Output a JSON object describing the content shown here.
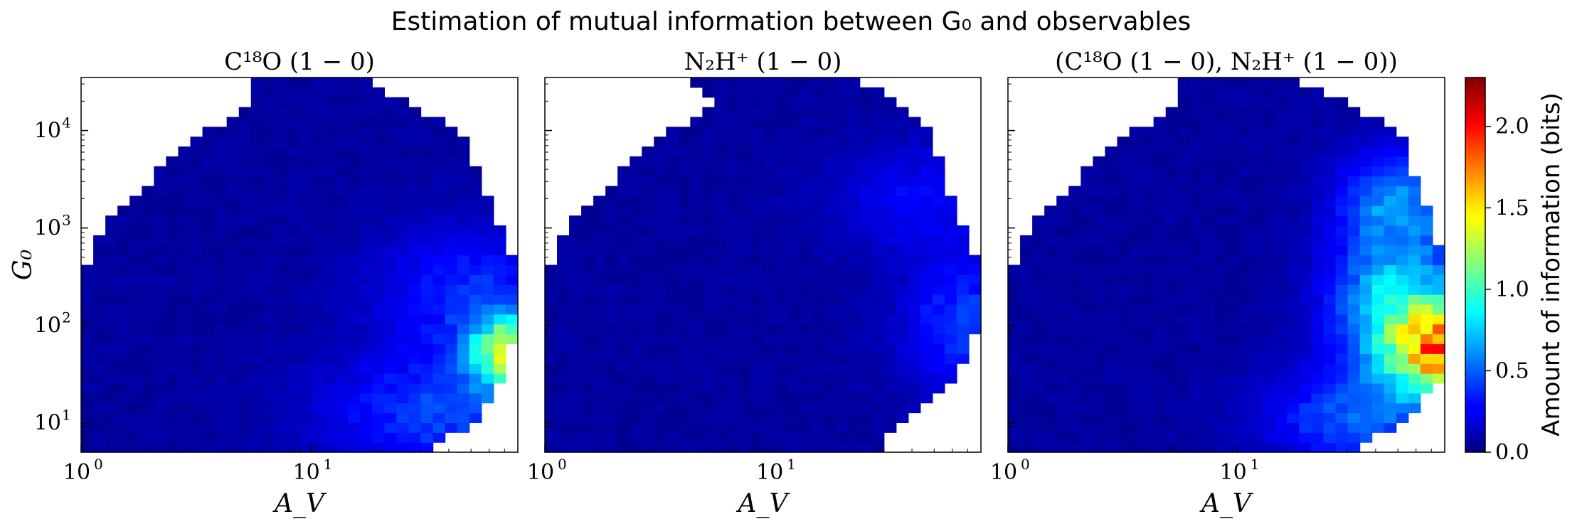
{
  "figure_title": "Estimation of mutual information between G₀ and observables",
  "colors": {
    "colormap": "jet",
    "frame": "#000000",
    "background": "#ffffff"
  },
  "chart_data": [
    {
      "type": "heatmap",
      "title": "C¹⁸O (1 − 0)",
      "xlabel": "A_V",
      "ylabel": "G₀",
      "xscale": "log",
      "yscale": "log",
      "xlim": [
        1,
        80
      ],
      "ylim": [
        5,
        35000
      ],
      "xticks": [
        {
          "value": 1,
          "base": "10",
          "exp": "0"
        },
        {
          "value": 10,
          "base": "10",
          "exp": "1"
        }
      ],
      "yticks": [
        {
          "value": 10,
          "base": "10",
          "exp": "1"
        },
        {
          "value": 100,
          "base": "10",
          "exp": "2"
        },
        {
          "value": 1000,
          "base": "10",
          "exp": "3"
        },
        {
          "value": 10000,
          "base": "10",
          "exp": "4"
        }
      ],
      "support_boundary": {
        "log_g0": [
          0.7,
          1.0,
          1.5,
          2.0,
          2.5,
          3.0,
          3.5,
          4.0,
          4.3,
          4.55
        ],
        "log_av_max": [
          1.5,
          1.72,
          1.85,
          1.9,
          1.92,
          1.82,
          1.75,
          1.65,
          1.4,
          1.2
        ],
        "log_av_min": [
          0,
          0,
          0,
          0,
          0,
          0.1,
          0.3,
          0.55,
          0.75,
          0.75
        ]
      },
      "mi_hotspots_bits": [
        {
          "log_av": 1.88,
          "log_g0": 1.72,
          "peak": 1.3,
          "sx": 0.12,
          "sy": 0.25
        },
        {
          "log_av": 1.55,
          "log_g0": 1.1,
          "peak": 0.35,
          "sx": 0.35,
          "sy": 0.4
        },
        {
          "log_av": 1.7,
          "log_g0": 2.3,
          "peak": 0.3,
          "sx": 0.3,
          "sy": 0.5
        }
      ],
      "colorbar_series": 0
    },
    {
      "type": "heatmap",
      "title": "N₂H⁺ (1 − 0)",
      "xlabel": "A_V",
      "ylabel": "",
      "xscale": "log",
      "yscale": "log",
      "xlim": [
        1,
        80
      ],
      "ylim": [
        5,
        35000
      ],
      "xticks": [
        {
          "value": 1,
          "base": "10",
          "exp": "0"
        },
        {
          "value": 10,
          "base": "10",
          "exp": "1"
        }
      ],
      "support_boundary": {
        "log_g0": [
          0.7,
          1.0,
          1.5,
          2.0,
          2.5,
          3.0,
          3.5,
          4.0,
          4.3,
          4.55
        ],
        "log_av_max": [
          1.45,
          1.55,
          1.8,
          1.9,
          1.92,
          1.82,
          1.75,
          1.68,
          1.55,
          1.3
        ],
        "log_av_min": [
          0,
          0,
          0,
          0,
          0,
          0.1,
          0.3,
          0.55,
          0.75,
          0.6
        ]
      },
      "mi_hotspots_bits": [
        {
          "log_av": 1.85,
          "log_g0": 2.0,
          "peak": 0.35,
          "sx": 0.2,
          "sy": 0.5
        },
        {
          "log_av": 1.6,
          "log_g0": 3.3,
          "peak": 0.2,
          "sx": 0.25,
          "sy": 0.4
        }
      ]
    },
    {
      "type": "heatmap",
      "title": "(C¹⁸O (1 − 0), N₂H⁺ (1 − 0))",
      "xlabel": "A_V",
      "ylabel": "",
      "xscale": "log",
      "yscale": "log",
      "xlim": [
        1,
        80
      ],
      "ylim": [
        5,
        35000
      ],
      "xticks": [
        {
          "value": 1,
          "base": "10",
          "exp": "0"
        },
        {
          "value": 10,
          "base": "10",
          "exp": "1"
        }
      ],
      "support_boundary": {
        "log_g0": [
          0.7,
          1.0,
          1.5,
          2.0,
          2.5,
          3.0,
          3.5,
          4.0,
          4.3,
          4.55
        ],
        "log_av_max": [
          1.5,
          1.72,
          1.9,
          1.92,
          1.92,
          1.85,
          1.78,
          1.7,
          1.45,
          1.2
        ],
        "log_av_min": [
          0,
          0,
          0,
          0,
          0,
          0.1,
          0.3,
          0.55,
          0.75,
          0.75
        ]
      },
      "mi_hotspots_bits": [
        {
          "log_av": 1.9,
          "log_g0": 1.75,
          "peak": 1.45,
          "sx": 0.15,
          "sy": 0.3
        },
        {
          "log_av": 1.7,
          "log_g0": 2.2,
          "peak": 0.8,
          "sx": 0.2,
          "sy": 0.5
        },
        {
          "log_av": 1.7,
          "log_g0": 3.3,
          "peak": 0.5,
          "sx": 0.18,
          "sy": 0.35
        },
        {
          "log_av": 1.55,
          "log_g0": 1.05,
          "peak": 0.4,
          "sx": 0.3,
          "sy": 0.35
        }
      ]
    }
  ],
  "colorbar": {
    "label": "Amount of information (bits)",
    "min": 0,
    "max": 2.3,
    "ticks": [
      "0.0",
      "0.5",
      "1.0",
      "1.5",
      "2.0"
    ],
    "tick_values": [
      0.0,
      0.5,
      1.0,
      1.5,
      2.0
    ]
  }
}
